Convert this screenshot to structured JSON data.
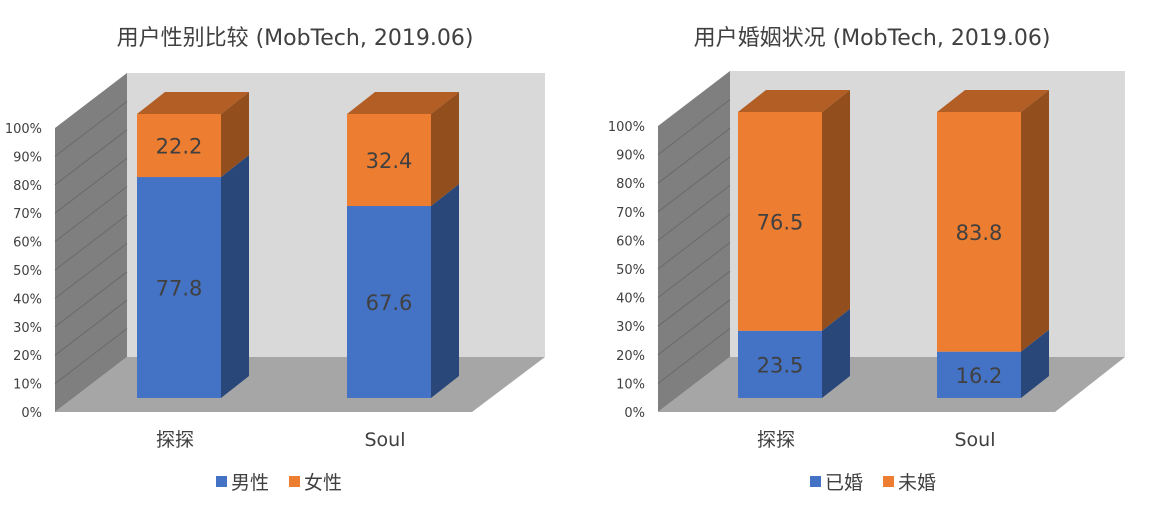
{
  "chart_data": [
    {
      "type": "bar",
      "stacked": true,
      "three_d": true,
      "title": "用户性别比较 (MobTech, 2019.06)",
      "categories": [
        "探探",
        "Soul"
      ],
      "series": [
        {
          "name": "男性",
          "values": [
            77.8,
            67.6
          ],
          "color": "#4472c4"
        },
        {
          "name": "女性",
          "values": [
            22.2,
            32.4
          ],
          "color": "#ed7d31"
        }
      ],
      "yticks": [
        "0%",
        "10%",
        "20%",
        "30%",
        "40%",
        "50%",
        "60%",
        "70%",
        "80%",
        "90%",
        "100%"
      ],
      "ylim": [
        0,
        100
      ],
      "legend": "bottom"
    },
    {
      "type": "bar",
      "stacked": true,
      "three_d": true,
      "title": "用户婚姻状况 (MobTech, 2019.06)",
      "categories": [
        "探探",
        "Soul"
      ],
      "series": [
        {
          "name": "已婚",
          "values": [
            23.5,
            16.2
          ],
          "color": "#4472c4"
        },
        {
          "name": "未婚",
          "values": [
            76.5,
            83.8
          ],
          "color": "#ed7d31"
        }
      ],
      "yticks": [
        "0%",
        "10%",
        "20%",
        "30%",
        "40%",
        "50%",
        "60%",
        "70%",
        "80%",
        "90%",
        "100%"
      ],
      "ylim": [
        0,
        100
      ],
      "legend": "bottom"
    }
  ]
}
